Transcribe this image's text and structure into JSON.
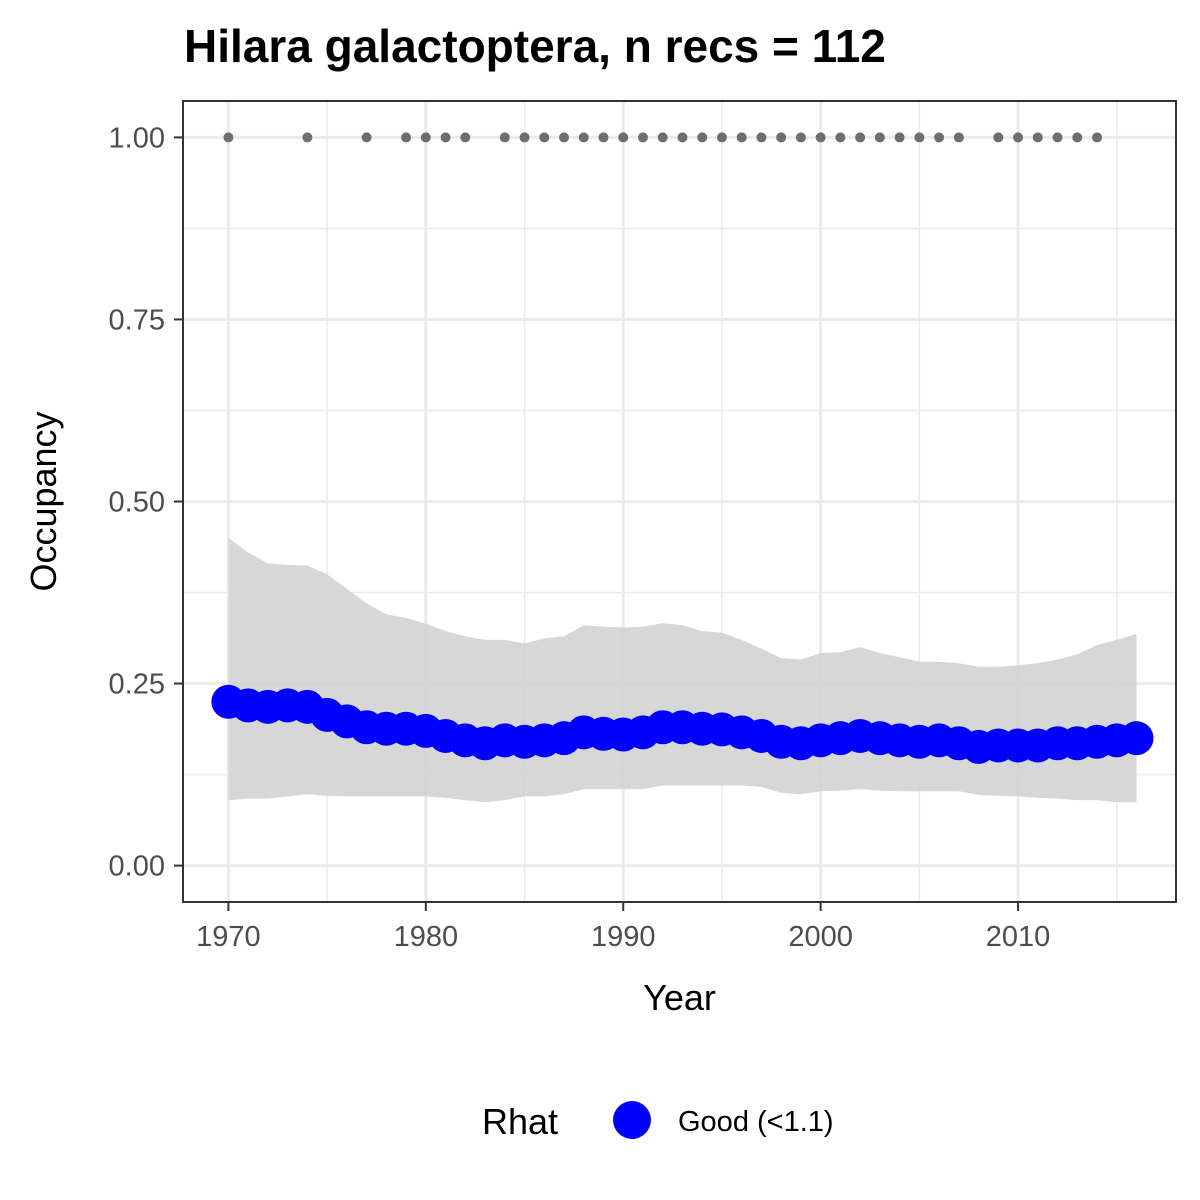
{
  "chart_data": {
    "type": "line",
    "title": "Hilara galactoptera, n recs = 112",
    "xlabel": "Year",
    "ylabel": "Occupancy",
    "xlim": [
      1967.7,
      2018
    ],
    "ylim": [
      -0.05,
      1.05
    ],
    "x_ticks": [
      1970,
      1980,
      1990,
      2000,
      2010
    ],
    "x_tick_labels": [
      "1970",
      "1980",
      "1990",
      "2000",
      "2010"
    ],
    "y_ticks": [
      0,
      0.25,
      0.5,
      0.75,
      1
    ],
    "y_tick_labels": [
      "0.00",
      "0.25",
      "0.50",
      "0.75",
      "1.00"
    ],
    "grid": true,
    "legend": {
      "position": "bottom",
      "title": "Rhat",
      "entries": [
        {
          "label": "Good (<1.1)",
          "color": "#0000ff"
        }
      ]
    },
    "colors": {
      "mean": "#0000ff",
      "ribbon": "#d3d3d3",
      "records": "#6e6e6e",
      "grid": "#ebebeb",
      "border": "#333333"
    },
    "x": [
      1970,
      1971,
      1972,
      1973,
      1974,
      1975,
      1976,
      1977,
      1978,
      1979,
      1980,
      1981,
      1982,
      1983,
      1984,
      1985,
      1986,
      1987,
      1988,
      1989,
      1990,
      1991,
      1992,
      1993,
      1994,
      1995,
      1996,
      1997,
      1998,
      1999,
      2000,
      2001,
      2002,
      2003,
      2004,
      2005,
      2006,
      2007,
      2008,
      2009,
      2010,
      2011,
      2012,
      2013,
      2014,
      2015,
      2016
    ],
    "series": [
      {
        "rhat": "Good (<1.1)",
        "mean": [
          0.225,
          0.22,
          0.218,
          0.22,
          0.218,
          0.207,
          0.198,
          0.19,
          0.188,
          0.188,
          0.185,
          0.178,
          0.172,
          0.168,
          0.172,
          0.17,
          0.172,
          0.175,
          0.183,
          0.181,
          0.18,
          0.183,
          0.19,
          0.19,
          0.188,
          0.187,
          0.183,
          0.178,
          0.17,
          0.168,
          0.172,
          0.175,
          0.178,
          0.175,
          0.172,
          0.17,
          0.172,
          0.168,
          0.163,
          0.165,
          0.165,
          0.165,
          0.168,
          0.168,
          0.17,
          0.172,
          0.175
        ],
        "lower": [
          0.09,
          0.092,
          0.092,
          0.095,
          0.098,
          0.096,
          0.095,
          0.095,
          0.095,
          0.095,
          0.095,
          0.093,
          0.09,
          0.087,
          0.09,
          0.095,
          0.095,
          0.098,
          0.105,
          0.105,
          0.105,
          0.105,
          0.11,
          0.11,
          0.11,
          0.11,
          0.11,
          0.108,
          0.1,
          0.098,
          0.102,
          0.103,
          0.105,
          0.103,
          0.102,
          0.102,
          0.102,
          0.102,
          0.097,
          0.096,
          0.095,
          0.093,
          0.092,
          0.09,
          0.09,
          0.087,
          0.087
        ],
        "upper": [
          0.45,
          0.43,
          0.415,
          0.413,
          0.412,
          0.4,
          0.38,
          0.36,
          0.345,
          0.34,
          0.332,
          0.322,
          0.315,
          0.31,
          0.31,
          0.305,
          0.312,
          0.315,
          0.33,
          0.328,
          0.327,
          0.328,
          0.333,
          0.33,
          0.322,
          0.32,
          0.31,
          0.298,
          0.285,
          0.283,
          0.292,
          0.293,
          0.3,
          0.292,
          0.286,
          0.28,
          0.28,
          0.278,
          0.273,
          0.273,
          0.275,
          0.278,
          0.283,
          0.29,
          0.303,
          0.31,
          0.318
        ]
      }
    ],
    "records_y": 1.0,
    "record_years": [
      1970,
      1974,
      1977,
      1979,
      1980,
      1981,
      1982,
      1984,
      1985,
      1986,
      1987,
      1988,
      1989,
      1990,
      1991,
      1992,
      1993,
      1994,
      1995,
      1996,
      1997,
      1998,
      1999,
      2000,
      2001,
      2002,
      2003,
      2004,
      2005,
      2006,
      2007,
      2009,
      2010,
      2011,
      2012,
      2013,
      2014
    ]
  }
}
